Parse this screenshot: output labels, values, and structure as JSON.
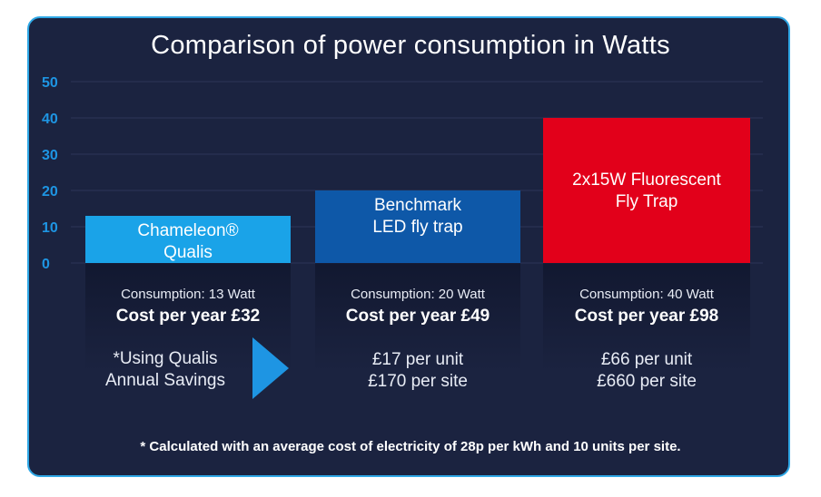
{
  "chart_data": {
    "type": "bar",
    "title": "Comparison of power consumption in Watts",
    "categories": [
      "Chameleon® Qualis",
      "Benchmark LED fly trap",
      "2x15W Fluorescent Fly Trap"
    ],
    "bar_labels": [
      [
        "Chameleon®",
        "Qualis"
      ],
      [
        "Benchmark",
        "LED fly trap"
      ],
      [
        "2x15W Fluorescent",
        "Fly Trap"
      ]
    ],
    "values": [
      13,
      20,
      40
    ],
    "colors": [
      "#1aa3e8",
      "#0e58a8",
      "#e2001a"
    ],
    "yticks": [
      0,
      10,
      20,
      30,
      40,
      50
    ],
    "ylim": [
      0,
      50
    ],
    "grid": true
  },
  "columns": [
    {
      "consumption": "Consumption: 13 Watt",
      "cost": "Cost per year £32"
    },
    {
      "consumption": "Consumption: 20 Watt",
      "cost": "Cost per year £49",
      "unit_savings": "£17 per unit",
      "site_savings": "£170 per site"
    },
    {
      "consumption": "Consumption: 40 Watt",
      "cost": "Cost per year £98",
      "unit_savings": "£66 per unit",
      "site_savings": "£660 per site"
    }
  ],
  "savings_note": {
    "line1": "*Using Qualis",
    "line2": "Annual Savings"
  },
  "footnote": "* Calculated with an average cost of electricity of 28p per kWh and 10 units per site.",
  "colors": {
    "background": "#1b2340",
    "border": "#2fa8e6",
    "tick": "#1e95e3",
    "arrow": "#1e95e3"
  }
}
